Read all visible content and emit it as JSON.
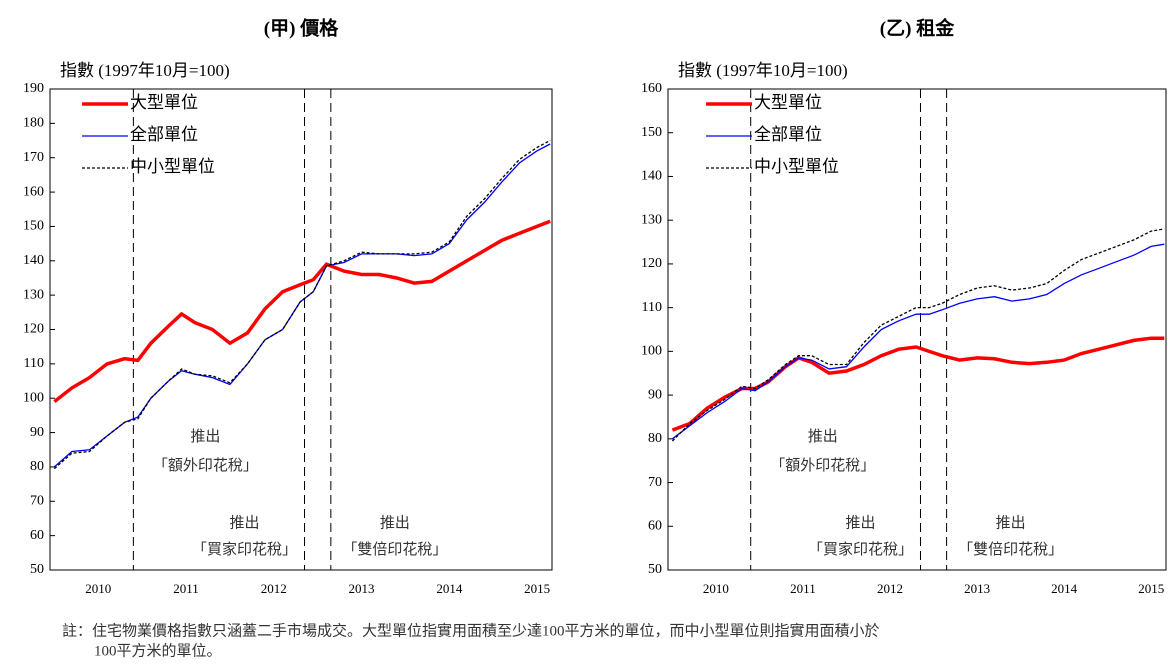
{
  "chart_data": [
    {
      "type": "line",
      "title": "(甲) 價格",
      "ylabel": "指數 (1997年10月=100)",
      "x": [
        2010.0,
        2010.2,
        2010.4,
        2010.6,
        2010.8,
        2010.95,
        2011.1,
        2011.3,
        2011.45,
        2011.6,
        2011.8,
        2012.0,
        2012.2,
        2012.4,
        2012.6,
        2012.8,
        2012.95,
        2013.1,
        2013.3,
        2013.5,
        2013.7,
        2013.9,
        2014.1,
        2014.3,
        2014.5,
        2014.7,
        2014.9,
        2015.1,
        2015.3,
        2015.5,
        2015.65
      ],
      "series": [
        {
          "name": "大型單位",
          "color": "#ff0000",
          "style": "solid",
          "values": [
            99,
            103,
            106,
            110,
            111.5,
            111,
            116,
            121,
            124.5,
            122,
            120,
            116,
            119,
            126,
            131,
            133,
            134.5,
            139,
            137,
            136,
            136,
            135,
            133.5,
            134,
            137,
            140,
            143,
            146,
            148,
            150,
            151.5
          ]
        },
        {
          "name": "全部單位",
          "color": "#0000ff",
          "style": "solid",
          "values": [
            80,
            84.5,
            85,
            89,
            93,
            94.5,
            100,
            105,
            108,
            107,
            106,
            104,
            110,
            117,
            120,
            128,
            131,
            138.5,
            139.5,
            142,
            142,
            142,
            141.5,
            142,
            145,
            152,
            157,
            163,
            168.5,
            172,
            174
          ]
        },
        {
          "name": "中小型單位",
          "color": "#000000",
          "style": "dashed",
          "values": [
            79.5,
            84,
            84.5,
            89,
            93,
            94,
            100,
            105,
            108.5,
            107,
            106.5,
            104.5,
            110,
            117,
            120,
            128,
            131,
            138.5,
            140,
            142.5,
            142,
            142,
            142,
            142.5,
            145.5,
            153,
            158,
            164,
            169.5,
            173,
            175
          ]
        }
      ],
      "xlim": [
        2009.95,
        2015.67
      ],
      "xticks": [
        {
          "value": 2010.5,
          "label": "2010"
        },
        {
          "value": 2011.5,
          "label": "2011"
        },
        {
          "value": 2012.5,
          "label": "2012"
        },
        {
          "value": 2013.5,
          "label": "2013"
        },
        {
          "value": 2014.5,
          "label": "2014"
        },
        {
          "value": 2015.5,
          "label": "2015"
        }
      ],
      "ylim": [
        50,
        190
      ],
      "yticks": [
        50,
        60,
        70,
        80,
        90,
        100,
        110,
        120,
        130,
        140,
        150,
        160,
        170,
        180,
        190
      ],
      "annotations": [
        {
          "x": 2010.9,
          "lines": [
            "推出",
            "「額外印花稅」"
          ]
        },
        {
          "x": 2012.85,
          "lines": [
            "推出",
            "「買家印花稅」"
          ]
        },
        {
          "x": 2013.15,
          "lines": [
            "推出",
            "「雙倍印花稅」"
          ]
        }
      ]
    },
    {
      "type": "line",
      "title": "(乙) 租金",
      "ylabel": "指數 (1997年10月=100)",
      "x": [
        2010.0,
        2010.2,
        2010.4,
        2010.6,
        2010.8,
        2010.95,
        2011.1,
        2011.3,
        2011.45,
        2011.6,
        2011.8,
        2012.0,
        2012.2,
        2012.4,
        2012.6,
        2012.8,
        2012.95,
        2013.1,
        2013.3,
        2013.5,
        2013.7,
        2013.9,
        2014.1,
        2014.3,
        2014.5,
        2014.7,
        2014.9,
        2015.1,
        2015.3,
        2015.5,
        2015.65
      ],
      "series": [
        {
          "name": "大型單位",
          "color": "#ff0000",
          "style": "solid",
          "values": [
            82,
            83.5,
            87,
            89.5,
            91.5,
            91.5,
            93,
            96.5,
            98.5,
            97.5,
            95,
            95.5,
            97,
            99,
            100.5,
            101,
            100,
            99,
            98,
            98.5,
            98.3,
            97.5,
            97.2,
            97.5,
            98,
            99.5,
            100.5,
            101.5,
            102.5,
            103,
            103
          ]
        },
        {
          "name": "全部單位",
          "color": "#0000ff",
          "style": "solid",
          "values": [
            80,
            83,
            86,
            88.5,
            91.5,
            91,
            93,
            96.5,
            98.5,
            98,
            96,
            96.5,
            101,
            105,
            107,
            108.5,
            108.5,
            109.5,
            111,
            112,
            112.5,
            111.5,
            112,
            113,
            115.5,
            117.5,
            119,
            120.5,
            122,
            124,
            124.5
          ]
        },
        {
          "name": "中小型單位",
          "color": "#000000",
          "style": "dashed",
          "values": [
            79.5,
            83.5,
            86.5,
            89,
            92,
            91.5,
            93.5,
            97,
            99,
            99,
            97,
            97,
            102,
            106,
            108,
            110,
            110,
            111,
            113,
            114.5,
            115,
            114,
            114.5,
            115.5,
            118.5,
            121,
            122.5,
            124,
            125.5,
            127.5,
            128
          ]
        }
      ],
      "xlim": [
        2009.95,
        2015.67
      ],
      "xticks": [
        {
          "value": 2010.5,
          "label": "2010"
        },
        {
          "value": 2011.5,
          "label": "2011"
        },
        {
          "value": 2012.5,
          "label": "2012"
        },
        {
          "value": 2013.5,
          "label": "2013"
        },
        {
          "value": 2014.5,
          "label": "2014"
        },
        {
          "value": 2015.5,
          "label": "2015"
        }
      ],
      "ylim": [
        50,
        160
      ],
      "yticks": [
        50,
        60,
        70,
        80,
        90,
        100,
        110,
        120,
        130,
        140,
        150,
        160
      ],
      "annotations": [
        {
          "x": 2010.9,
          "lines": [
            "推出",
            "「額外印花稅」"
          ]
        },
        {
          "x": 2012.85,
          "lines": [
            "推出",
            "「買家印花稅」"
          ]
        },
        {
          "x": 2013.15,
          "lines": [
            "推出",
            "「雙倍印花稅」"
          ]
        }
      ]
    }
  ],
  "note": [
    "註：住宅物業價格指數只涵蓋二手市場成交。大型單位指實用面積至少達100平方米的單位，而中小型單位則指實用面積小於",
    "100平方米的單位。"
  ]
}
